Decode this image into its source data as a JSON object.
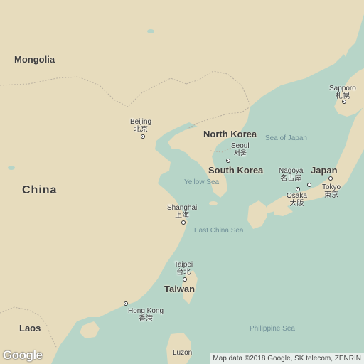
{
  "countries": {
    "mongolia": "Mongolia",
    "china": "China",
    "north_korea": "North Korea",
    "south_korea": "South Korea",
    "japan": "Japan",
    "taiwan": "Taiwan",
    "laos": "Laos"
  },
  "cities": {
    "beijing": {
      "latin": "Beijing",
      "local": "北京"
    },
    "seoul": {
      "latin": "Seoul",
      "local": "서울"
    },
    "nagoya": {
      "latin": "Nagoya",
      "local": "名古屋"
    },
    "osaka": {
      "latin": "Osaka",
      "local": "大阪"
    },
    "tokyo": {
      "latin": "Tokyo",
      "local": "東京"
    },
    "sapporo": {
      "latin": "Sapporo",
      "local": "札幌"
    },
    "shanghai": {
      "latin": "Shanghai",
      "local": "上海"
    },
    "taipei": {
      "latin": "Taipei",
      "local": "台北"
    },
    "hong_kong": {
      "latin": "Hong Kong",
      "local": "香港"
    },
    "luzon": {
      "latin": "Luzon"
    }
  },
  "seas": {
    "sea_of_japan": "Sea of Japan",
    "yellow_sea": "Yellow Sea",
    "east_china_sea": "East China Sea",
    "philippine_sea": "Philippine Sea"
  },
  "branding": {
    "logo": "Google",
    "attribution": "Map data ©2018 Google, SK telecom, ZENRIN"
  },
  "colors": {
    "land": "#e7dcbd",
    "water": "#b7d5c8",
    "border": "#b9b0a0"
  }
}
